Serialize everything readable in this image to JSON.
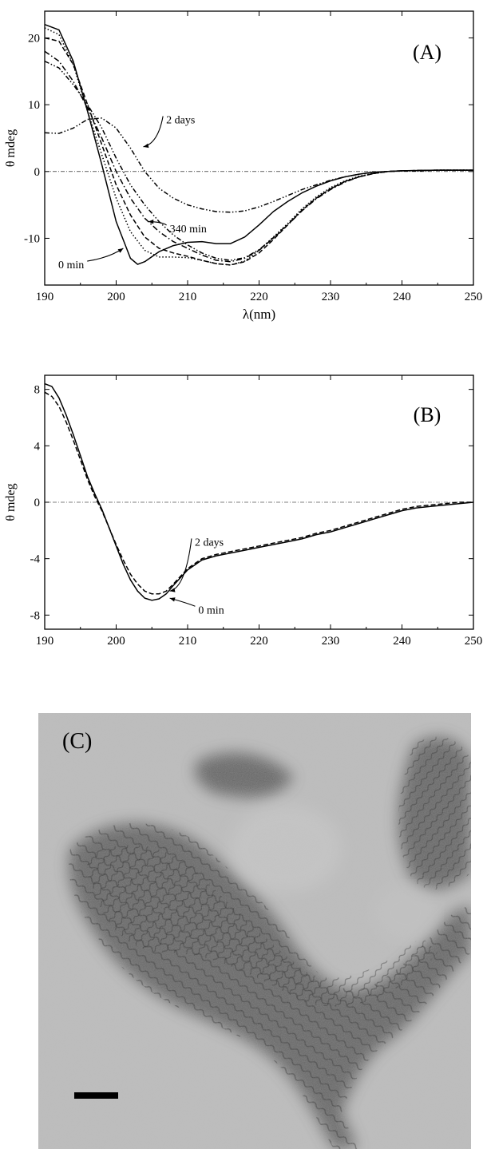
{
  "chart_data": [
    {
      "panel": "(A)",
      "type": "line",
      "xlabel": "λ(nm)",
      "ylabel": "θ mdeg",
      "xlim": [
        190,
        250
      ],
      "ylim": [
        -17,
        24
      ],
      "xticks": [
        190,
        200,
        210,
        220,
        230,
        240,
        250
      ],
      "yticks": [
        20,
        10,
        0,
        -10
      ],
      "ytick_labels": [
        "20",
        "10",
        "0",
        "-10"
      ],
      "zero_line": true,
      "grid": false,
      "annotations": [
        {
          "text": "0 min",
          "at": [
            201,
            -11.5
          ],
          "tx": 195.5,
          "ty": -13.9
        },
        {
          "text": "340 min",
          "at": [
            204.5,
            -7.5
          ],
          "tx": 207.5,
          "ty": -8.5
        },
        {
          "text": "2 days",
          "at": [
            203.8,
            3.7
          ],
          "tx": 207,
          "ty": 7.8
        }
      ],
      "series": [
        {
          "style": "solid",
          "x": [
            190,
            192,
            194,
            196,
            198,
            200,
            202,
            203,
            204,
            206,
            208,
            210,
            212,
            214,
            216,
            218,
            220,
            222,
            224,
            226,
            228,
            230,
            232,
            234,
            236,
            238,
            240,
            245,
            250
          ],
          "y": [
            22.0,
            21.2,
            16.5,
            9.0,
            1.0,
            -7.5,
            -13.0,
            -13.9,
            -13.5,
            -12.0,
            -11.1,
            -10.6,
            -10.5,
            -10.8,
            -10.8,
            -9.8,
            -8.0,
            -6.0,
            -4.5,
            -3.2,
            -2.2,
            -1.4,
            -0.8,
            -0.4,
            -0.1,
            0.0,
            0.1,
            0.2,
            0.2
          ]
        },
        {
          "style": "dotted",
          "x": [
            190,
            192,
            194,
            196,
            198,
            200,
            202,
            204,
            206,
            208,
            210,
            212,
            214,
            216,
            218,
            220,
            222,
            224,
            226,
            228,
            230,
            232,
            234,
            236,
            238,
            240,
            245,
            250
          ],
          "y": [
            21.5,
            20.5,
            16.0,
            9.0,
            2.5,
            -4.0,
            -9.0,
            -11.8,
            -12.8,
            -12.8,
            -12.9,
            -13.3,
            -13.8,
            -14.0,
            -13.4,
            -11.8,
            -9.8,
            -7.8,
            -5.6,
            -3.8,
            -2.4,
            -1.4,
            -0.7,
            -0.3,
            0.0,
            0.1,
            0.2,
            0.2
          ]
        },
        {
          "style": "dashed",
          "x": [
            190,
            192,
            194,
            196,
            198,
            200,
            202,
            204,
            206,
            208,
            210,
            212,
            214,
            216,
            218,
            220,
            222,
            224,
            226,
            228,
            230,
            232,
            234,
            236,
            238,
            240,
            245,
            250
          ],
          "y": [
            20.0,
            19.5,
            16.0,
            10.0,
            4.0,
            -2.0,
            -6.5,
            -9.8,
            -11.5,
            -12.2,
            -12.7,
            -13.3,
            -13.8,
            -14.0,
            -13.5,
            -12.2,
            -10.2,
            -8.0,
            -5.8,
            -4.0,
            -2.6,
            -1.5,
            -0.8,
            -0.3,
            0.0,
            0.1,
            0.2,
            0.2
          ]
        },
        {
          "style": "dashdot",
          "x": [
            190,
            192,
            194,
            196,
            198,
            200,
            202,
            204,
            206,
            208,
            210,
            212,
            214,
            216,
            218,
            220,
            222,
            224,
            226,
            228,
            230,
            232,
            234,
            236,
            238,
            240,
            245,
            250
          ],
          "y": [
            18.0,
            16.5,
            13.5,
            9.5,
            5.0,
            0.0,
            -4.0,
            -7.0,
            -9.0,
            -10.5,
            -11.5,
            -12.5,
            -13.3,
            -13.5,
            -13.0,
            -11.8,
            -10.0,
            -8.0,
            -5.9,
            -4.1,
            -2.7,
            -1.6,
            -0.8,
            -0.3,
            0.0,
            0.1,
            0.2,
            0.2
          ]
        },
        {
          "style": "dashdotdot",
          "x": [
            190,
            192,
            194,
            196,
            198,
            200,
            202,
            204,
            206,
            208,
            210,
            212,
            214,
            216,
            218,
            220,
            222,
            224,
            226,
            228,
            230,
            232,
            234,
            236,
            238,
            240,
            245,
            250
          ],
          "y": [
            16.5,
            15.5,
            13.0,
            10.0,
            6.5,
            2.0,
            -2.0,
            -5.0,
            -7.5,
            -9.5,
            -11.0,
            -12.2,
            -13.0,
            -13.3,
            -12.9,
            -11.7,
            -9.9,
            -7.9,
            -5.8,
            -4.0,
            -2.6,
            -1.5,
            -0.8,
            -0.3,
            0.0,
            0.1,
            0.2,
            0.2
          ]
        },
        {
          "style": "dashdotdot",
          "x": [
            190,
            192,
            194,
            196,
            198,
            200,
            202,
            204,
            206,
            208,
            210,
            212,
            214,
            216,
            218,
            220,
            222,
            224,
            226,
            228,
            230,
            232,
            234,
            236,
            238,
            240,
            245,
            250
          ],
          "y": [
            5.8,
            5.7,
            6.5,
            7.8,
            8.0,
            6.5,
            3.5,
            0.0,
            -2.5,
            -4.0,
            -5.0,
            -5.6,
            -6.0,
            -6.1,
            -5.9,
            -5.3,
            -4.5,
            -3.6,
            -2.7,
            -2.0,
            -1.3,
            -0.8,
            -0.4,
            -0.1,
            0.0,
            0.1,
            0.2,
            0.2
          ]
        }
      ]
    },
    {
      "panel": "(B)",
      "type": "line",
      "xlabel": "λ(nm)",
      "ylabel": "θ mdeg",
      "xlim": [
        190,
        250
      ],
      "ylim": [
        -9,
        9
      ],
      "xticks": [
        190,
        200,
        210,
        220,
        230,
        240,
        250
      ],
      "yticks": [
        8,
        4,
        0,
        -4,
        -8
      ],
      "ytick_labels": [
        "8",
        "4",
        "0",
        "-4",
        "-8"
      ],
      "zero_line": true,
      "grid": false,
      "annotations": [
        {
          "text": "2 days",
          "at": [
            207.5,
            -6.3
          ],
          "tx": 211,
          "ty": -2.8
        },
        {
          "text": "0 min",
          "at": [
            207.5,
            -6.8
          ],
          "tx": 211.5,
          "ty": -7.6
        }
      ],
      "series": [
        {
          "style": "solid",
          "x": [
            190,
            191,
            192,
            193,
            194,
            195,
            196,
            197,
            198,
            199,
            200,
            201,
            202,
            203,
            204,
            205,
            206,
            207,
            208,
            210,
            212,
            214,
            216,
            218,
            220,
            222,
            224,
            226,
            228,
            230,
            232,
            234,
            236,
            238,
            240,
            242,
            244,
            246,
            248,
            250
          ],
          "y": [
            8.4,
            8.2,
            7.4,
            6.2,
            4.8,
            3.3,
            1.8,
            0.6,
            -0.5,
            -1.8,
            -3.1,
            -4.4,
            -5.5,
            -6.3,
            -6.8,
            -6.95,
            -6.85,
            -6.5,
            -5.9,
            -4.8,
            -4.1,
            -3.8,
            -3.6,
            -3.4,
            -3.2,
            -3.0,
            -2.8,
            -2.6,
            -2.3,
            -2.1,
            -1.8,
            -1.5,
            -1.2,
            -0.9,
            -0.6,
            -0.4,
            -0.3,
            -0.2,
            -0.1,
            0.0
          ]
        },
        {
          "style": "dashed",
          "x": [
            190,
            191,
            192,
            193,
            194,
            195,
            196,
            197,
            198,
            199,
            200,
            201,
            202,
            203,
            204,
            205,
            206,
            207,
            208,
            210,
            212,
            214,
            216,
            218,
            220,
            222,
            224,
            226,
            228,
            230,
            232,
            234,
            236,
            238,
            240,
            242,
            244,
            246,
            248,
            250
          ],
          "y": [
            7.8,
            7.5,
            6.8,
            5.7,
            4.4,
            3.0,
            1.6,
            0.4,
            -0.6,
            -1.8,
            -3.0,
            -4.1,
            -5.1,
            -5.8,
            -6.3,
            -6.5,
            -6.5,
            -6.3,
            -5.8,
            -4.7,
            -4.0,
            -3.7,
            -3.5,
            -3.3,
            -3.1,
            -2.9,
            -2.7,
            -2.5,
            -2.2,
            -2.0,
            -1.7,
            -1.4,
            -1.1,
            -0.8,
            -0.5,
            -0.3,
            -0.2,
            -0.1,
            0.0,
            0.0
          ]
        }
      ]
    }
  ],
  "panel_c": {
    "label": "(C)"
  }
}
